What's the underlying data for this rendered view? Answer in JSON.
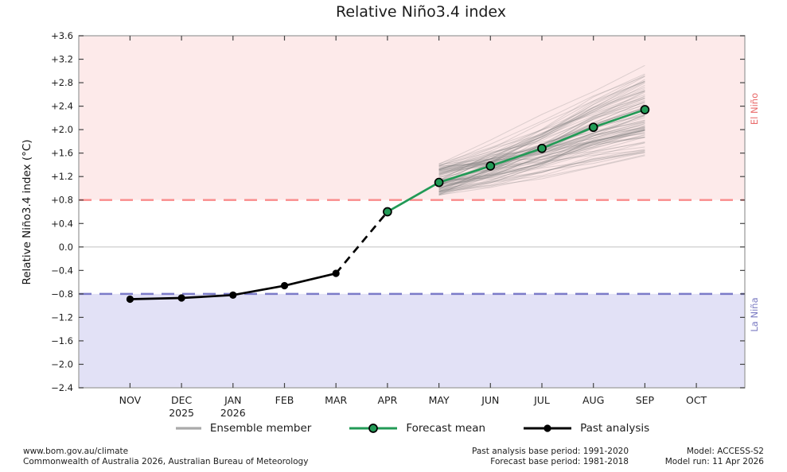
{
  "title": "Relative Niño3.4 index",
  "y_axis": {
    "label": "Relative Niño3.4 index (°C)",
    "ticks": [
      "+3.6",
      "+3.2",
      "+2.8",
      "+2.4",
      "+2.0",
      "+1.6",
      "+1.2",
      "+0.8",
      "+0.4",
      "0.0",
      "−0.4",
      "−0.8",
      "−1.2",
      "−1.6",
      "−2.0",
      "−2.4"
    ]
  },
  "x_axis": {
    "months": [
      {
        "label": "NOV",
        "sublabel": ""
      },
      {
        "label": "DEC",
        "sublabel": "2025"
      },
      {
        "label": "JAN",
        "sublabel": "2026"
      },
      {
        "label": "FEB",
        "sublabel": ""
      },
      {
        "label": "MAR",
        "sublabel": ""
      },
      {
        "label": "APR",
        "sublabel": ""
      },
      {
        "label": "MAY",
        "sublabel": ""
      },
      {
        "label": "JUN",
        "sublabel": ""
      },
      {
        "label": "JUL",
        "sublabel": ""
      },
      {
        "label": "AUG",
        "sublabel": ""
      },
      {
        "label": "SEP",
        "sublabel": ""
      },
      {
        "label": "OCT",
        "sublabel": ""
      }
    ]
  },
  "region_labels": {
    "el_nino": "El Niño",
    "la_nina": "La Niña"
  },
  "legend": [
    {
      "label": "Ensemble member",
      "type": "ensemble"
    },
    {
      "label": "Forecast mean",
      "type": "forecast"
    },
    {
      "label": "Past analysis",
      "type": "past"
    }
  ],
  "footer": {
    "left_line1": "www.bom.gov.au/climate",
    "left_line2": "Commonwealth of Australia 2026, Australian Bureau of Meteorology",
    "mid_line1": "Past analysis base period: 1991-2020",
    "mid_line2": "Forecast base period: 1981-2018",
    "right_line1": "Model: ACCESS-S2",
    "right_line2": "Model run: 11 Apr 2026"
  },
  "colors": {
    "el_nino_bg": "#fdeaea",
    "la_nina_bg": "#e2e1f6",
    "el_nino_line": "#f98b8b",
    "la_nina_line": "#7b7bc8",
    "el_nino_text": "#e96a6a",
    "la_nina_text": "#7a7ac2",
    "forecast_green": "#229a56",
    "past_black": "#000000",
    "ensemble_gray": "#7a7a7a",
    "zero_line": "#c9c9c9",
    "frame": "#a6a6a6",
    "tick": "#444444"
  },
  "chart_data": {
    "type": "line",
    "title": "Relative Niño3.4 index",
    "xlabel": "",
    "ylabel": "Relative Niño3.4 index (°C)",
    "x_categories": [
      "NOV",
      "DEC",
      "JAN",
      "FEB",
      "MAR",
      "APR",
      "MAY",
      "JUN",
      "JUL",
      "AUG",
      "SEP",
      "OCT"
    ],
    "x_year_breaks": {
      "DEC": "2025",
      "JAN": "2026"
    },
    "ylim": [
      -2.4,
      3.6
    ],
    "y_tick_step": 0.4,
    "grid": "zero-line-only",
    "legend_position": "bottom-center",
    "thresholds": {
      "el_nino": 0.8,
      "la_nina": -0.8
    },
    "series": [
      {
        "name": "Past analysis",
        "style": "solid-markers",
        "color": "#000000",
        "months": [
          "NOV",
          "DEC",
          "JAN",
          "FEB",
          "MAR"
        ],
        "values": [
          -0.89,
          -0.87,
          -0.82,
          -0.66,
          -0.45
        ]
      },
      {
        "name": "Analysis-to-forecast transition",
        "style": "dashed",
        "color": "#000000",
        "months": [
          "MAR",
          "APR"
        ],
        "values": [
          -0.45,
          0.6
        ]
      },
      {
        "name": "Forecast mean",
        "style": "solid-markers",
        "color": "#229a56",
        "months": [
          "APR",
          "MAY",
          "JUN",
          "JUL",
          "AUG",
          "SEP"
        ],
        "values": [
          0.6,
          1.1,
          1.38,
          1.68,
          2.04,
          2.34
        ]
      },
      {
        "name": "Ensemble member",
        "style": "ensemble",
        "color": "#7a7a7a",
        "months": [
          "MAY",
          "JUN",
          "JUL",
          "AUG",
          "SEP"
        ],
        "mean_values": [
          1.1,
          1.38,
          1.68,
          2.04,
          2.34
        ],
        "member_count": 90,
        "start_spread": [
          0.85,
          1.42
        ],
        "end_spread": [
          1.35,
          3.08
        ]
      }
    ]
  }
}
